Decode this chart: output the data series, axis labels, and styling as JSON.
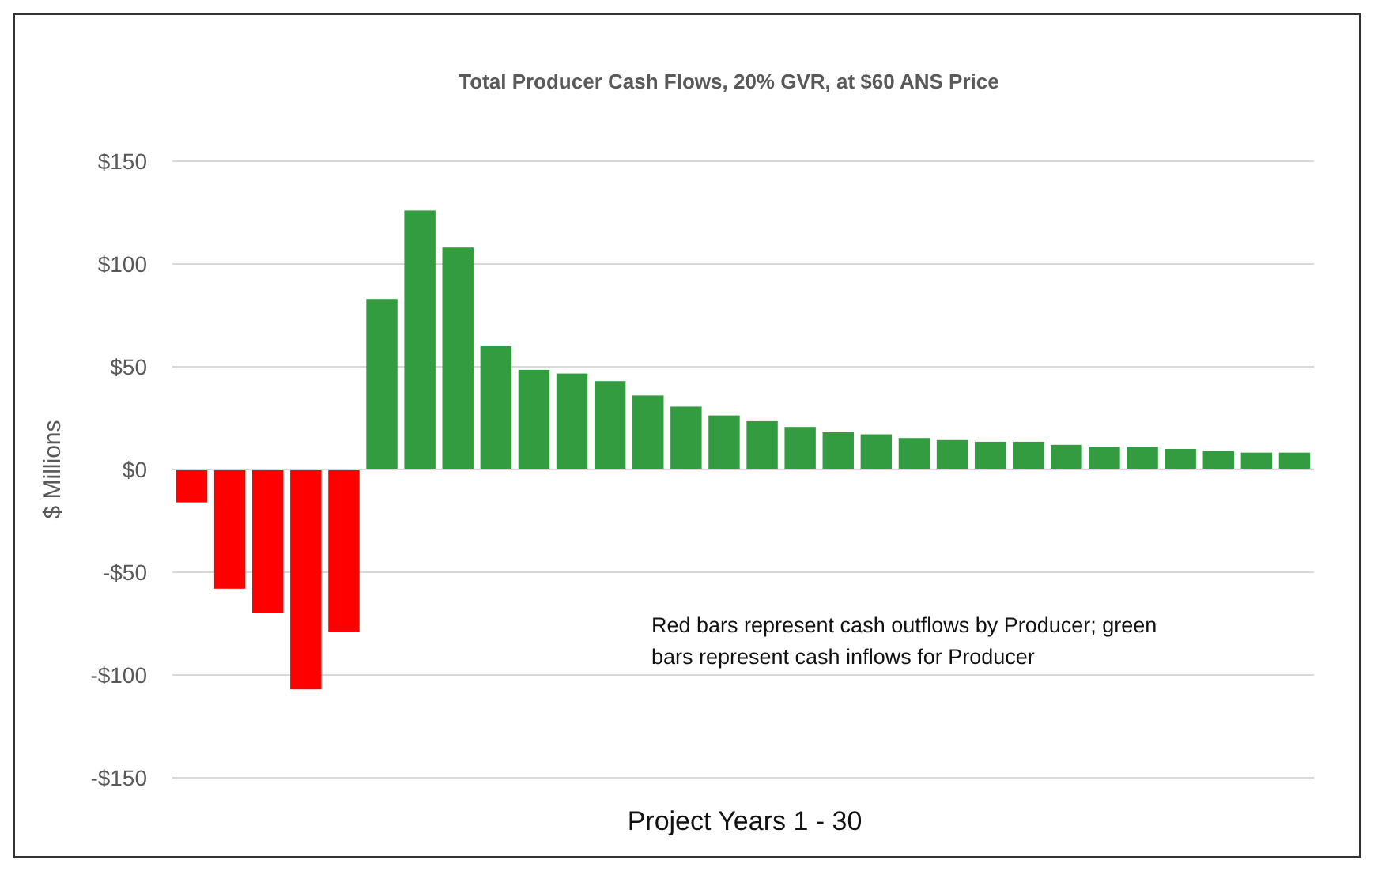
{
  "chart_data": {
    "type": "bar",
    "title": "Total Producer Cash Flows, 20% GVR, at $60 ANS Price",
    "xlabel": "Project Years 1 - 30",
    "ylabel": "$ Millions",
    "categories": [
      null,
      null,
      null,
      null,
      null,
      null,
      null,
      null,
      null,
      null,
      null,
      null,
      null,
      null,
      null,
      null,
      null,
      null,
      null,
      null,
      null,
      null,
      null,
      null,
      null,
      null,
      null,
      null,
      null,
      null
    ],
    "values": [
      -16,
      -58,
      -70,
      -107,
      -79,
      83,
      126,
      108,
      60,
      48.5,
      46.7,
      43,
      36,
      30.6,
      26.3,
      23.5,
      20.7,
      18.1,
      17.1,
      15.3,
      14.3,
      13.5,
      13.5,
      12,
      11,
      11,
      10,
      9,
      8.2,
      8.2
    ],
    "colors": [
      "#ff0000",
      "#ff0000",
      "#ff0000",
      "#ff0000",
      "#ff0000",
      "#339c41",
      "#339c41",
      "#339c41",
      "#339c41",
      "#339c41",
      "#339c41",
      "#339c41",
      "#339c41",
      "#339c41",
      "#339c41",
      "#339c41",
      "#339c41",
      "#339c41",
      "#339c41",
      "#339c41",
      "#339c41",
      "#339c41",
      "#339c41",
      "#339c41",
      "#339c41",
      "#339c41",
      "#339c41",
      "#339c41",
      "#339c41",
      "#339c41"
    ],
    "ylim": [
      -150,
      150
    ],
    "yticks": [
      {
        "value": -150,
        "label": "-$150"
      },
      {
        "value": -100,
        "label": "-$100"
      },
      {
        "value": -50,
        "label": "-$50"
      },
      {
        "value": 0,
        "label": "$0"
      },
      {
        "value": 50,
        "label": "$50"
      },
      {
        "value": 100,
        "label": "$100"
      },
      {
        "value": 150,
        "label": "$150"
      }
    ],
    "grid": "y",
    "annotations": [
      "Red bars represent cash outflows by Producer; green bars represent cash inflows for Producer"
    ]
  }
}
